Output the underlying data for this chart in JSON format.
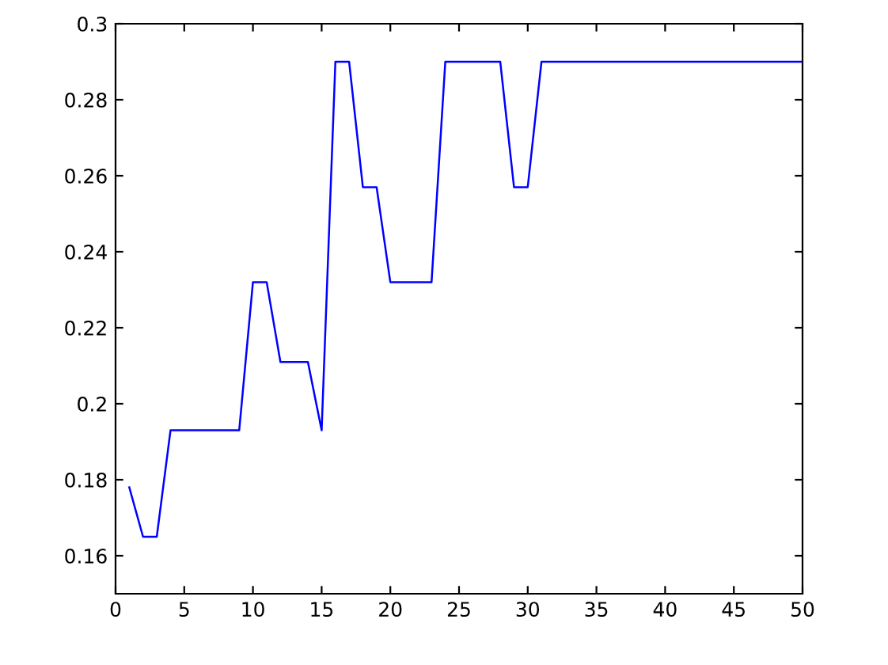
{
  "chart_data": {
    "type": "line",
    "x": [
      1,
      2,
      3,
      4,
      5,
      6,
      7,
      8,
      9,
      10,
      11,
      12,
      13,
      14,
      15,
      16,
      17,
      18,
      19,
      20,
      21,
      22,
      23,
      24,
      25,
      26,
      27,
      28,
      29,
      30,
      31,
      32,
      33,
      34,
      35,
      36,
      37,
      38,
      39,
      40,
      41,
      42,
      43,
      44,
      45,
      46,
      47,
      48,
      49,
      50
    ],
    "series": [
      {
        "color": "#0000ff",
        "values": [
          0.178,
          0.165,
          0.165,
          0.193,
          0.193,
          0.193,
          0.193,
          0.193,
          0.193,
          0.232,
          0.232,
          0.211,
          0.211,
          0.211,
          0.193,
          0.29,
          0.29,
          0.257,
          0.257,
          0.232,
          0.232,
          0.232,
          0.232,
          0.29,
          0.29,
          0.29,
          0.29,
          0.29,
          0.257,
          0.257,
          0.29,
          0.29,
          0.29,
          0.29,
          0.29,
          0.29,
          0.29,
          0.29,
          0.29,
          0.29,
          0.29,
          0.29,
          0.29,
          0.29,
          0.29,
          0.29,
          0.29,
          0.29,
          0.29,
          0.29
        ]
      }
    ],
    "xlim": [
      0,
      50
    ],
    "xticks": [
      0,
      5,
      10,
      15,
      20,
      25,
      30,
      35,
      40,
      45,
      50
    ],
    "ylim": [
      0.15,
      0.3
    ],
    "yticks": [
      0.16,
      0.18,
      {
        "value": 0.2,
        "label": "0.2"
      },
      0.22,
      0.24,
      0.26,
      0.28,
      {
        "value": 0.3,
        "label": "0.3"
      }
    ],
    "grid": false,
    "legend": false
  }
}
